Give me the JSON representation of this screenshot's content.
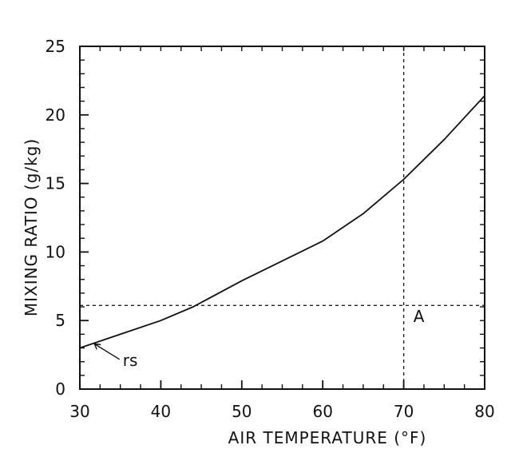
{
  "chart_data": {
    "type": "line",
    "title": "",
    "xlabel": "AIR TEMPERATURE (°F)",
    "ylabel": "MIXING RATIO (g/kg)",
    "xlim": [
      30,
      80
    ],
    "ylim": [
      0,
      25
    ],
    "xticks": [
      30,
      40,
      50,
      60,
      70,
      80
    ],
    "yticks": [
      0,
      5,
      10,
      15,
      20,
      25
    ],
    "xtick_labels": [
      "30",
      "40",
      "50",
      "60",
      "70",
      "80"
    ],
    "ytick_labels": [
      "0",
      "5",
      "10",
      "15",
      "20",
      "25"
    ],
    "grid": false,
    "series": [
      {
        "name": "rs",
        "x": [
          30,
          40,
          44,
          50,
          60,
          65,
          70,
          75,
          80
        ],
        "y": [
          3.0,
          5.0,
          6.0,
          7.9,
          10.8,
          12.8,
          15.3,
          18.2,
          21.4
        ]
      }
    ],
    "reference_lines": [
      {
        "orientation": "vertical",
        "x": 70
      },
      {
        "orientation": "horizontal",
        "y": 6.1
      }
    ],
    "annotations": [
      {
        "text": "A",
        "x": 71.2,
        "y": 4.9
      },
      {
        "text": "rs",
        "x": 35.3,
        "y": 1.7
      }
    ]
  }
}
